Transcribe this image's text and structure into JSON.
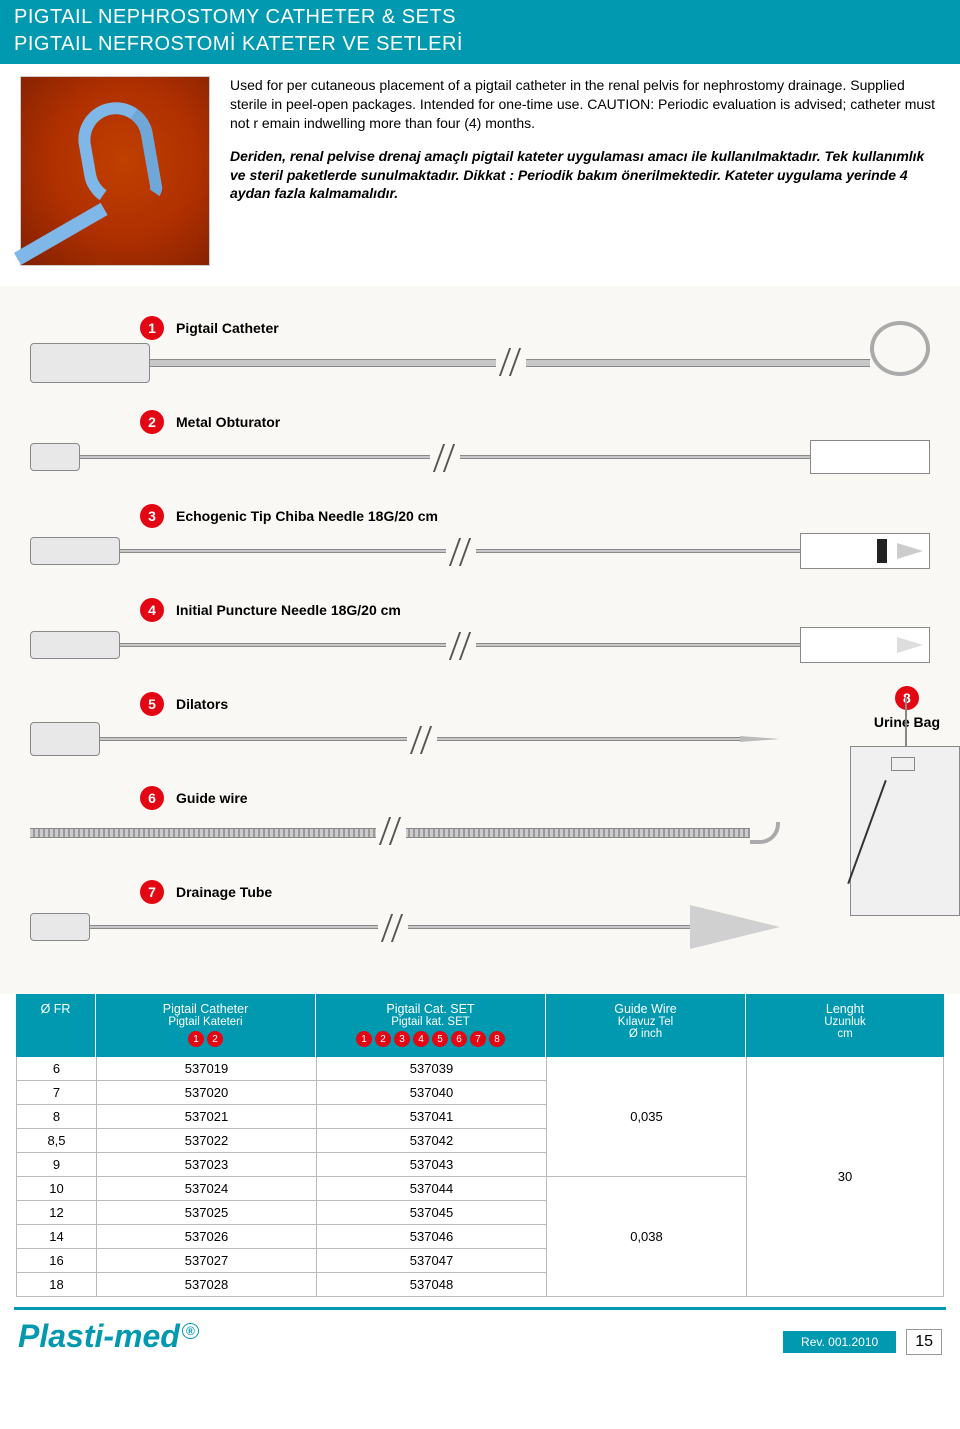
{
  "colors": {
    "brand_teal": "#0099b0",
    "accent_red": "#e30613",
    "bg_cream": "#f9f8f4",
    "rule_gray": "#bbbbbb"
  },
  "header": {
    "title_en": "PIGTAIL NEPHROSTOMY CATHETER & SETS",
    "title_tr": "PIGTAIL NEFROSTOMİ KATETER VE SETLERİ"
  },
  "intro": {
    "en": "Used for per cutaneous placement of a pigtail catheter in the renal pelvis for nephrostomy drainage. Supplied sterile in peel-open packages. Intended for one-time use. CAUTION: Periodic evaluation is advised; catheter must not r emain indwelling more than four (4) months.",
    "tr": "Deriden, renal pelvise drenaj amaçlı pigtail kateter uygulaması amacı ile kullanılmaktadır.  Tek kullanımlık ve steril paketlerde  sunulmaktadır. Dikkat : Periodik bakım önerilmektedir. Kateter uygulama yerinde 4 aydan fazla kalmamalıdır."
  },
  "components": [
    {
      "num": "1",
      "label": "Pigtail Catheter"
    },
    {
      "num": "2",
      "label": "Metal Obturator"
    },
    {
      "num": "3",
      "label": "Echogenic Tip Chiba Needle 18G/20 cm"
    },
    {
      "num": "4",
      "label": "Initial Puncture Needle 18G/20 cm"
    },
    {
      "num": "5",
      "label": "Dilators"
    },
    {
      "num": "6",
      "label": "Guide wire"
    },
    {
      "num": "7",
      "label": "Drainage Tube"
    }
  ],
  "side_component": {
    "num": "8",
    "label": "Urine Bag"
  },
  "table": {
    "columns": {
      "fr": {
        "line1": "Ø FR"
      },
      "catheter": {
        "line1": "Pigtail Catheter",
        "line2": "Pigtail  Kateteri",
        "badges": [
          "1",
          "2"
        ]
      },
      "set": {
        "line1": "Pigtail Cat. SET",
        "line2": "Pigtail kat. SET",
        "badges": [
          "1",
          "2",
          "3",
          "4",
          "5",
          "6",
          "7",
          "8"
        ]
      },
      "guidewire": {
        "line1": "Guide Wire",
        "line2": "Kılavuz Tel",
        "line3": "Ø  inch"
      },
      "length": {
        "line1": "Lenght",
        "line2": "Uzunluk",
        "line3": "cm"
      }
    },
    "rows": [
      {
        "fr": "6",
        "cat": "537019",
        "set": "537039"
      },
      {
        "fr": "7",
        "cat": "537020",
        "set": "537040"
      },
      {
        "fr": "8",
        "cat": "537021",
        "set": "537041"
      },
      {
        "fr": "8,5",
        "cat": "537022",
        "set": "537042"
      },
      {
        "fr": "9",
        "cat": "537023",
        "set": "537043"
      },
      {
        "fr": "10",
        "cat": "537024",
        "set": "537044"
      },
      {
        "fr": "12",
        "cat": "537025",
        "set": "537045"
      },
      {
        "fr": "14",
        "cat": "537026",
        "set": "537046"
      },
      {
        "fr": "16",
        "cat": "537027",
        "set": "537047"
      },
      {
        "fr": "18",
        "cat": "537028",
        "set": "537048"
      }
    ],
    "guidewire_merged": [
      {
        "value": "0,035",
        "span": 5
      },
      {
        "value": "0,038",
        "span": 5
      }
    ],
    "length_merged": [
      {
        "value": "30",
        "span": 10
      }
    ]
  },
  "footer": {
    "logo": "Plasti-med",
    "logo_sup": "®",
    "rev": "Rev. 001.2010",
    "page": "15"
  }
}
